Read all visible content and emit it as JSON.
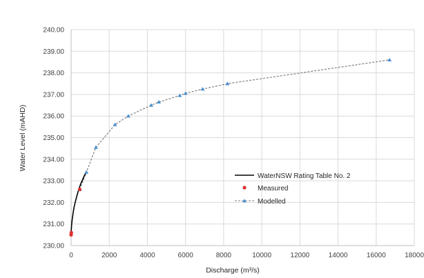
{
  "chart_data": {
    "type": "line",
    "title": "",
    "xlabel": "Discharge (m³/s)",
    "ylabel": "Water Level (mAHD)",
    "xlim": [
      0,
      18000
    ],
    "ylim": [
      230,
      240
    ],
    "x_ticks": [
      0,
      2000,
      4000,
      6000,
      8000,
      10000,
      12000,
      14000,
      16000,
      18000
    ],
    "x_tick_labels": [
      "0",
      "2000",
      "4000",
      "6000",
      "8000",
      "10000",
      "12000",
      "14000",
      "16000",
      "18000"
    ],
    "y_ticks": [
      230,
      231,
      232,
      233,
      234,
      235,
      236,
      237,
      238,
      239,
      240
    ],
    "y_tick_labels": [
      "230.00",
      "231.00",
      "232.00",
      "233.00",
      "234.00",
      "235.00",
      "236.00",
      "237.00",
      "238.00",
      "239.00",
      "240.00"
    ],
    "grid": true,
    "legend_position": "center-right",
    "series": [
      {
        "name": "WaterNSW Rating Table No. 2",
        "style": "solid-line",
        "color": "#000000",
        "x": [
          0,
          10,
          30,
          60,
          100,
          150,
          200,
          300,
          400,
          500,
          600,
          700,
          800
        ],
        "y": [
          230.45,
          230.75,
          231.0,
          231.25,
          231.5,
          231.75,
          231.95,
          232.3,
          232.6,
          232.85,
          233.05,
          233.25,
          233.4
        ]
      },
      {
        "name": "Measured",
        "style": "markers",
        "marker": "circle",
        "color": "#e03030",
        "x": [
          0,
          10,
          450
        ],
        "y": [
          230.5,
          230.6,
          232.6
        ]
      },
      {
        "name": "Modelled",
        "style": "dashed-line-triangle-markers",
        "marker": "triangle",
        "color": "#4a90d0",
        "line_color": "#7f7f7f",
        "x": [
          450,
          800,
          1300,
          2300,
          3000,
          4200,
          4600,
          5700,
          6000,
          6900,
          8200,
          16700
        ],
        "y": [
          232.6,
          233.4,
          234.55,
          235.6,
          236.0,
          236.5,
          236.65,
          236.95,
          237.05,
          237.25,
          237.5,
          238.6
        ]
      }
    ]
  }
}
